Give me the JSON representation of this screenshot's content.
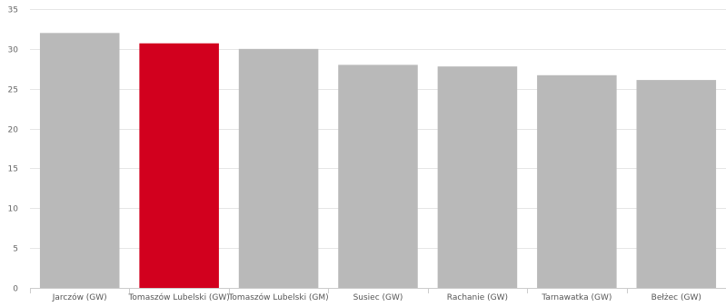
{
  "chart_data": {
    "type": "bar",
    "categories": [
      "Jarczów (GW)",
      "Tomaszów Lubelski (GW)",
      "Tomaszów Lubelski (GM)",
      "Susiec (GW)",
      "Rachanie (GW)",
      "Tarnawatka (GW)",
      "Bełżec (GW)"
    ],
    "values": [
      32.0,
      30.7,
      30.0,
      28.0,
      27.8,
      26.7,
      26.1
    ],
    "title": "",
    "xlabel": "",
    "ylabel": "",
    "ylim": [
      0,
      35
    ],
    "yticks": [
      0,
      5,
      10,
      15,
      20,
      25,
      30,
      35
    ],
    "grid": true,
    "legend": "none",
    "highlight_index": 1,
    "colors": {
      "default": "#b9b9b9",
      "highlight": "#d2001e",
      "grid": "#e6e6e6",
      "axis": "#cccccc"
    }
  }
}
